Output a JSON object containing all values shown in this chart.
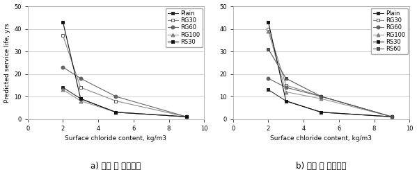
{
  "left": {
    "title": "a) 개질 전 순환골재",
    "series": [
      {
        "label": "Plain",
        "x": [
          2,
          3,
          5,
          9
        ],
        "y": [
          14,
          9,
          3,
          1
        ],
        "marker": "s",
        "mfc": "#222222",
        "mec": "#222222",
        "color": "#333333"
      },
      {
        "label": "RG30",
        "x": [
          2,
          3,
          5,
          9
        ],
        "y": [
          37,
          14,
          8,
          1
        ],
        "marker": "s",
        "mfc": "white",
        "mec": "#555555",
        "color": "#888888"
      },
      {
        "label": "RG60",
        "x": [
          2,
          3,
          5,
          9
        ],
        "y": [
          23,
          18,
          10,
          1
        ],
        "marker": "o",
        "mfc": "#666666",
        "mec": "#555555",
        "color": "#666666"
      },
      {
        "label": "RG100",
        "x": [
          2,
          3,
          5,
          9
        ],
        "y": [
          13,
          8,
          3,
          1
        ],
        "marker": "^",
        "mfc": "#888888",
        "mec": "#777777",
        "color": "#999999"
      },
      {
        "label": "RS30",
        "x": [
          2,
          3,
          5,
          9
        ],
        "y": [
          43,
          9,
          3,
          1
        ],
        "marker": "s",
        "mfc": "#111111",
        "mec": "#111111",
        "color": "#111111"
      }
    ],
    "xlabel": "Surface chloride content, kg/m3",
    "ylabel": "Predicted service life, yrs",
    "xlim": [
      0,
      10
    ],
    "ylim": [
      0,
      50
    ],
    "xticks": [
      0,
      2,
      4,
      6,
      8,
      10
    ],
    "yticks": [
      0,
      10,
      20,
      30,
      40,
      50
    ]
  },
  "right": {
    "title": "b) 개질 후 순환골재",
    "series": [
      {
        "label": "Plain",
        "x": [
          2,
          3,
          5,
          9
        ],
        "y": [
          13,
          8,
          3,
          1
        ],
        "marker": "s",
        "mfc": "#222222",
        "mec": "#222222",
        "color": "#333333"
      },
      {
        "label": "RG30",
        "x": [
          2,
          3,
          5,
          9
        ],
        "y": [
          40,
          15,
          10,
          1
        ],
        "marker": "s",
        "mfc": "white",
        "mec": "#555555",
        "color": "#888888"
      },
      {
        "label": "RG60",
        "x": [
          2,
          3,
          5,
          9
        ],
        "y": [
          18,
          14,
          10,
          1
        ],
        "marker": "o",
        "mfc": "#666666",
        "mec": "#555555",
        "color": "#666666"
      },
      {
        "label": "RG100",
        "x": [
          2,
          3,
          5,
          9
        ],
        "y": [
          39,
          12,
          9,
          1
        ],
        "marker": "^",
        "mfc": "#888888",
        "mec": "#777777",
        "color": "#999999"
      },
      {
        "label": "RS30",
        "x": [
          2,
          3,
          5,
          9
        ],
        "y": [
          43,
          8,
          3,
          1
        ],
        "marker": "s",
        "mfc": "#111111",
        "mec": "#111111",
        "color": "#111111"
      },
      {
        "label": "RS60",
        "x": [
          2,
          3,
          5,
          9
        ],
        "y": [
          31,
          18,
          10,
          1
        ],
        "marker": "s",
        "mfc": "#555555",
        "mec": "#444444",
        "color": "#555555"
      }
    ],
    "xlabel": "Surface chloride content, kg/m3",
    "ylabel": "Predicted service life, yrs",
    "xlim": [
      0,
      10
    ],
    "ylim": [
      0,
      50
    ],
    "xticks": [
      0,
      2,
      4,
      6,
      8,
      10
    ],
    "yticks": [
      0,
      10,
      20,
      30,
      40,
      50
    ]
  },
  "bg_color": "#ffffff",
  "title_fontsize": 8.5,
  "label_fontsize": 6.5,
  "tick_fontsize": 6,
  "legend_fontsize": 6
}
